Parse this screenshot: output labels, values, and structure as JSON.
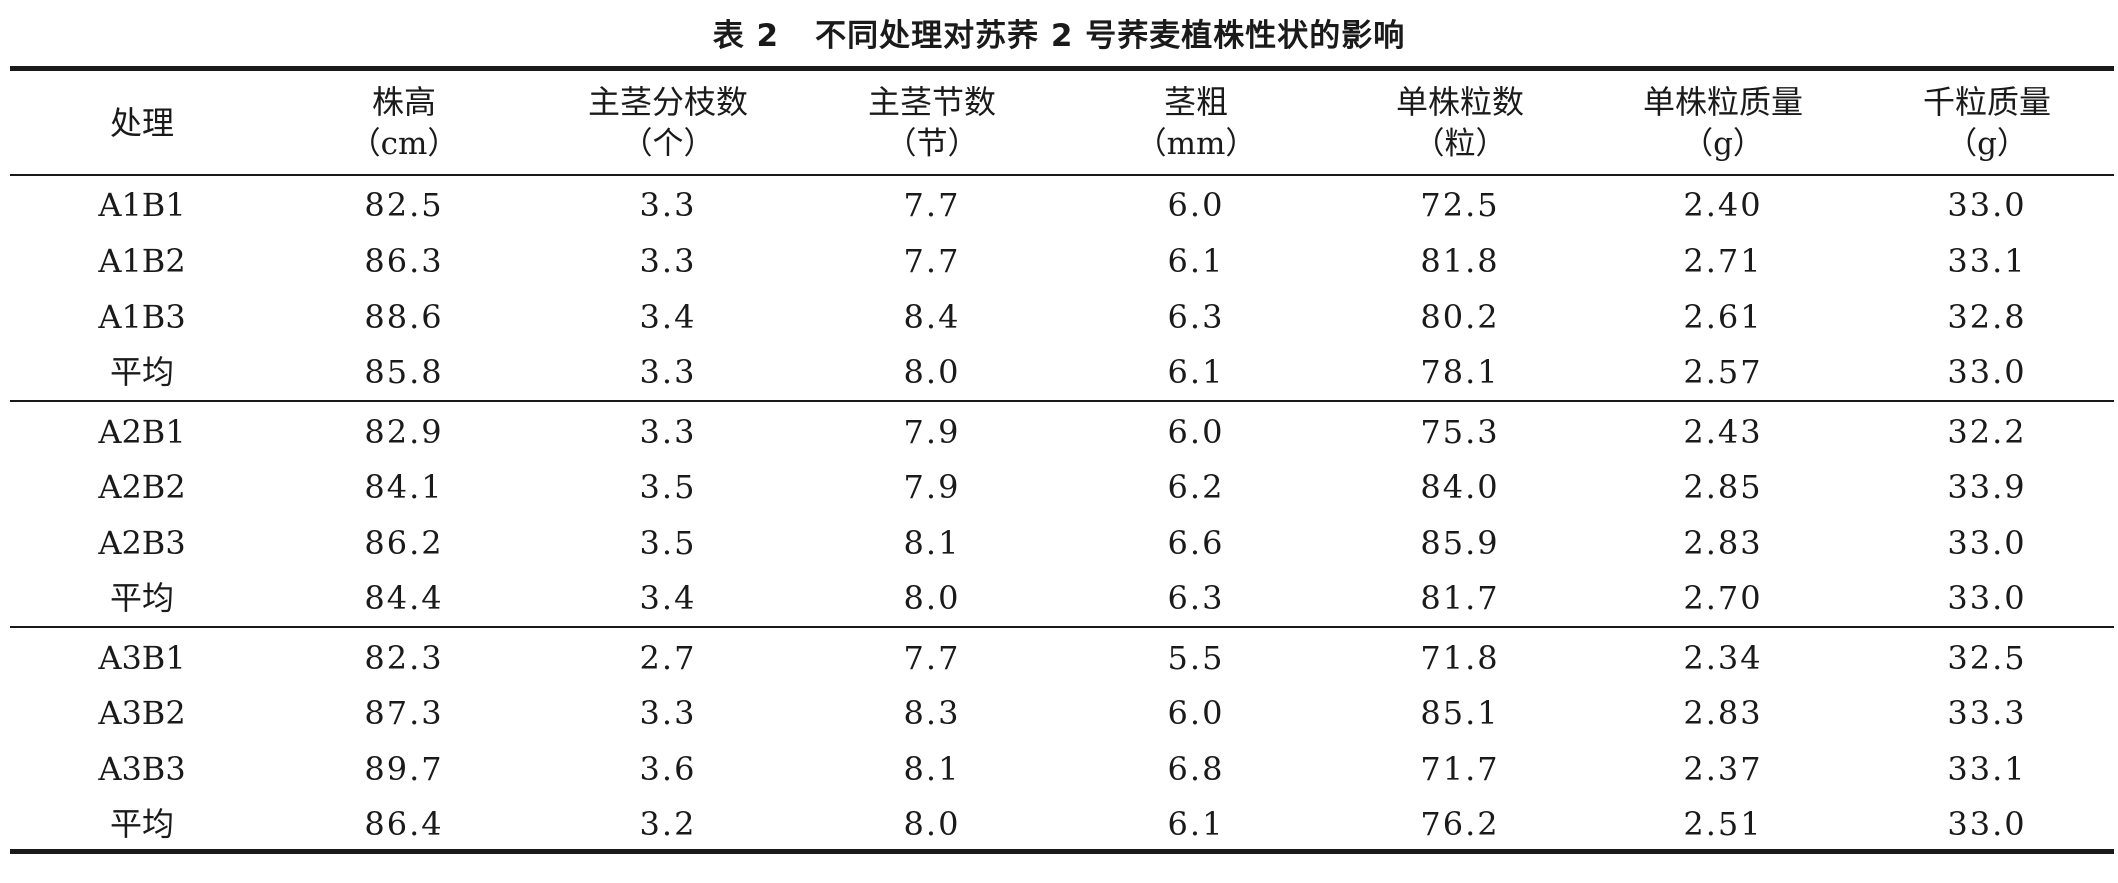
{
  "table": {
    "title_no": "表 2",
    "title_text": "不同处理对苏荞 2 号荞麦植株性状的影响",
    "headers": [
      {
        "name": "处理",
        "unit": ""
      },
      {
        "name": "株高",
        "unit": "（cm）"
      },
      {
        "name": "主茎分枝数",
        "unit": "（个）"
      },
      {
        "name": "主茎节数",
        "unit": "（节）"
      },
      {
        "name": "茎粗",
        "unit": "（mm）"
      },
      {
        "name": "单株粒数",
        "unit": "（粒）"
      },
      {
        "name": "单株粒质量",
        "unit": "（g）"
      },
      {
        "name": "千粒质量",
        "unit": "（g）"
      }
    ],
    "rows": [
      [
        "A1B1",
        "82.5",
        "3.3",
        "7.7",
        "6.0",
        "72.5",
        "2.40",
        "33.0"
      ],
      [
        "A1B2",
        "86.3",
        "3.3",
        "7.7",
        "6.1",
        "81.8",
        "2.71",
        "33.1"
      ],
      [
        "A1B3",
        "88.6",
        "3.4",
        "8.4",
        "6.3",
        "80.2",
        "2.61",
        "32.8"
      ],
      [
        "平均",
        "85.8",
        "3.3",
        "8.0",
        "6.1",
        "78.1",
        "2.57",
        "33.0"
      ],
      [
        "A2B1",
        "82.9",
        "3.3",
        "7.9",
        "6.0",
        "75.3",
        "2.43",
        "32.2"
      ],
      [
        "A2B2",
        "84.1",
        "3.5",
        "7.9",
        "6.2",
        "84.0",
        "2.85",
        "33.9"
      ],
      [
        "A2B3",
        "86.2",
        "3.5",
        "8.1",
        "6.6",
        "85.9",
        "2.83",
        "33.0"
      ],
      [
        "平均",
        "84.4",
        "3.4",
        "8.0",
        "6.3",
        "81.7",
        "2.70",
        "33.0"
      ],
      [
        "A3B1",
        "82.3",
        "2.7",
        "7.7",
        "5.5",
        "71.8",
        "2.34",
        "32.5"
      ],
      [
        "A3B2",
        "87.3",
        "3.3",
        "8.3",
        "6.0",
        "85.1",
        "2.83",
        "33.3"
      ],
      [
        "A3B3",
        "89.7",
        "3.6",
        "8.1",
        "6.8",
        "71.7",
        "2.37",
        "33.1"
      ],
      [
        "平均",
        "86.4",
        "3.2",
        "8.0",
        "6.1",
        "76.2",
        "2.51",
        "33.0"
      ]
    ]
  }
}
